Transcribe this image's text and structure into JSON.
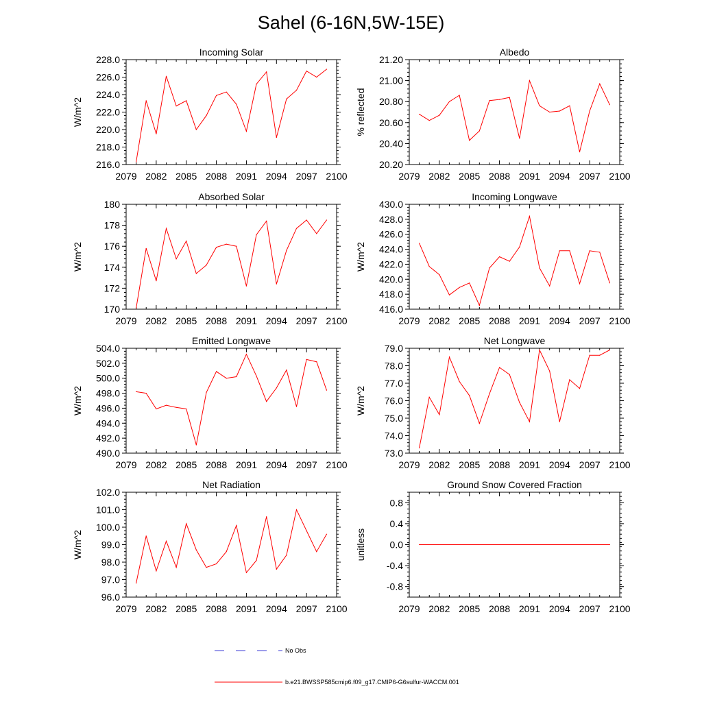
{
  "title": "Sahel (6-16N,5W-15E)",
  "colors": {
    "series": "#ff0000",
    "obs": "#3b3bd6",
    "axis": "#000000"
  },
  "legend": {
    "obs_label": "No Obs",
    "model_label": "b.e21.BWSSP585cmip6.f09_g17.CMIP6-G6sulfur-WACCM.001"
  },
  "chart_data": [
    {
      "type": "line",
      "title": "Incoming Solar",
      "ylabel": "W/m^2",
      "xlim": [
        2079,
        2100
      ],
      "xticks": [
        "2079",
        "2082",
        "2085",
        "2088",
        "2091",
        "2094",
        "2097",
        "2100"
      ],
      "ylim": [
        216.0,
        228.0
      ],
      "yticks": [
        "216.0",
        "218.0",
        "220.0",
        "222.0",
        "224.0",
        "226.0",
        "228.0"
      ],
      "series": [
        {
          "x": [
            2080,
            2081,
            2082,
            2083,
            2084,
            2085,
            2086,
            2087,
            2088,
            2089,
            2090,
            2091,
            2092,
            2093,
            2094,
            2095,
            2096,
            2097,
            2098,
            2099
          ],
          "values": [
            216.3,
            223.3,
            219.5,
            226.1,
            222.7,
            223.3,
            220.0,
            221.6,
            223.9,
            224.3,
            222.9,
            219.8,
            225.2,
            226.6,
            219.1,
            223.5,
            224.5,
            226.7,
            226.0,
            226.9
          ]
        }
      ]
    },
    {
      "type": "line",
      "title": "Albedo",
      "ylabel": "% reflected",
      "xlim": [
        2079,
        2100
      ],
      "xticks": [
        "2079",
        "2082",
        "2085",
        "2088",
        "2091",
        "2094",
        "2097",
        "2100"
      ],
      "ylim": [
        20.2,
        21.2
      ],
      "yticks": [
        "20.20",
        "20.40",
        "20.60",
        "20.80",
        "21.00",
        "21.20"
      ],
      "series": [
        {
          "x": [
            2080,
            2081,
            2082,
            2083,
            2084,
            2085,
            2086,
            2087,
            2088,
            2089,
            2090,
            2091,
            2092,
            2093,
            2094,
            2095,
            2096,
            2097,
            2098,
            2099
          ],
          "values": [
            20.68,
            20.62,
            20.67,
            20.8,
            20.86,
            20.43,
            20.52,
            20.81,
            20.82,
            20.84,
            20.45,
            21.0,
            20.76,
            20.7,
            20.71,
            20.76,
            20.32,
            20.71,
            20.97,
            20.77
          ]
        }
      ]
    },
    {
      "type": "line",
      "title": "Absorbed Solar",
      "ylabel": "W/m^2",
      "xlim": [
        2079,
        2100
      ],
      "xticks": [
        "2079",
        "2082",
        "2085",
        "2088",
        "2091",
        "2094",
        "2097",
        "2100"
      ],
      "ylim": [
        170,
        180
      ],
      "yticks": [
        "170",
        "172",
        "174",
        "176",
        "178",
        "180"
      ],
      "series": [
        {
          "x": [
            2080,
            2081,
            2082,
            2083,
            2084,
            2085,
            2086,
            2087,
            2088,
            2089,
            2090,
            2091,
            2092,
            2093,
            2094,
            2095,
            2096,
            2097,
            2098,
            2099
          ],
          "values": [
            170.1,
            175.8,
            172.7,
            177.7,
            174.8,
            176.5,
            173.4,
            174.2,
            175.9,
            176.2,
            176.0,
            172.2,
            177.1,
            178.4,
            172.4,
            175.6,
            177.7,
            178.5,
            177.2,
            178.5
          ]
        }
      ]
    },
    {
      "type": "line",
      "title": "Incoming Longwave",
      "ylabel": "W/m^2",
      "xlim": [
        2079,
        2100
      ],
      "xticks": [
        "2079",
        "2082",
        "2085",
        "2088",
        "2091",
        "2094",
        "2097",
        "2100"
      ],
      "ylim": [
        416.0,
        430.0
      ],
      "yticks": [
        "416.0",
        "418.0",
        "420.0",
        "422.0",
        "424.0",
        "426.0",
        "428.0",
        "430.0"
      ],
      "series": [
        {
          "x": [
            2080,
            2081,
            2082,
            2083,
            2084,
            2085,
            2086,
            2087,
            2088,
            2089,
            2090,
            2091,
            2092,
            2093,
            2094,
            2095,
            2096,
            2097,
            2098,
            2099
          ],
          "values": [
            424.8,
            421.7,
            420.6,
            417.9,
            418.9,
            419.5,
            416.5,
            421.5,
            423.0,
            422.4,
            424.3,
            428.4,
            421.5,
            419.1,
            423.8,
            423.8,
            419.4,
            423.8,
            423.6,
            419.5
          ]
        }
      ]
    },
    {
      "type": "line",
      "title": "Emitted Longwave",
      "ylabel": "W/m^2",
      "xlim": [
        2079,
        2100
      ],
      "xticks": [
        "2079",
        "2082",
        "2085",
        "2088",
        "2091",
        "2094",
        "2097",
        "2100"
      ],
      "ylim": [
        490.0,
        504.0
      ],
      "yticks": [
        "490.0",
        "492.0",
        "494.0",
        "496.0",
        "498.0",
        "500.0",
        "502.0",
        "504.0"
      ],
      "series": [
        {
          "x": [
            2080,
            2081,
            2082,
            2083,
            2084,
            2085,
            2086,
            2087,
            2088,
            2089,
            2090,
            2091,
            2092,
            2093,
            2094,
            2095,
            2096,
            2097,
            2098,
            2099
          ],
          "values": [
            498.2,
            498.0,
            495.9,
            496.4,
            496.1,
            495.9,
            491.1,
            498.1,
            500.9,
            500.0,
            500.2,
            503.2,
            500.3,
            496.9,
            498.7,
            501.1,
            496.2,
            502.5,
            502.2,
            498.4
          ]
        }
      ]
    },
    {
      "type": "line",
      "title": "Net Longwave",
      "ylabel": "W/m^2",
      "xlim": [
        2079,
        2100
      ],
      "xticks": [
        "2079",
        "2082",
        "2085",
        "2088",
        "2091",
        "2094",
        "2097",
        "2100"
      ],
      "ylim": [
        73.0,
        79.0
      ],
      "yticks": [
        "73.0",
        "74.0",
        "75.0",
        "76.0",
        "77.0",
        "78.0",
        "79.0"
      ],
      "series": [
        {
          "x": [
            2080,
            2081,
            2082,
            2083,
            2084,
            2085,
            2086,
            2087,
            2088,
            2089,
            2090,
            2091,
            2092,
            2093,
            2094,
            2095,
            2096,
            2097,
            2098,
            2099
          ],
          "values": [
            73.3,
            76.2,
            75.2,
            78.5,
            77.1,
            76.3,
            74.7,
            76.4,
            77.9,
            77.5,
            75.9,
            74.8,
            78.9,
            77.7,
            74.8,
            77.2,
            76.7,
            78.6,
            78.6,
            78.9
          ]
        }
      ]
    },
    {
      "type": "line",
      "title": "Net Radiation",
      "ylabel": "W/m^2",
      "xlim": [
        2079,
        2100
      ],
      "xticks": [
        "2079",
        "2082",
        "2085",
        "2088",
        "2091",
        "2094",
        "2097",
        "2100"
      ],
      "ylim": [
        96.0,
        102.0
      ],
      "yticks": [
        "96.0",
        "97.0",
        "98.0",
        "99.0",
        "100.0",
        "101.0",
        "102.0"
      ],
      "series": [
        {
          "x": [
            2080,
            2081,
            2082,
            2083,
            2084,
            2085,
            2086,
            2087,
            2088,
            2089,
            2090,
            2091,
            2092,
            2093,
            2094,
            2095,
            2096,
            2097,
            2098,
            2099
          ],
          "values": [
            96.8,
            99.5,
            97.5,
            99.2,
            97.7,
            100.2,
            98.7,
            97.7,
            97.9,
            98.6,
            100.1,
            97.4,
            98.1,
            100.6,
            97.6,
            98.4,
            101.0,
            99.8,
            98.6,
            99.6
          ]
        }
      ]
    },
    {
      "type": "line",
      "title": "Ground Snow Covered Fraction",
      "ylabel": "unitless",
      "xlim": [
        2079,
        2100
      ],
      "xticks": [
        "2079",
        "2082",
        "2085",
        "2088",
        "2091",
        "2094",
        "2097",
        "2100"
      ],
      "ylim": [
        -1.0,
        1.0
      ],
      "yticks": [
        "-0.8",
        "-0.4",
        "0.0",
        "0.4",
        "0.8"
      ],
      "series": [
        {
          "x": [
            2080,
            2081,
            2082,
            2083,
            2084,
            2085,
            2086,
            2087,
            2088,
            2089,
            2090,
            2091,
            2092,
            2093,
            2094,
            2095,
            2096,
            2097,
            2098,
            2099
          ],
          "values": [
            0,
            0,
            0,
            0,
            0,
            0,
            0,
            0,
            0,
            0,
            0,
            0,
            0,
            0,
            0,
            0,
            0,
            0,
            0,
            0
          ]
        }
      ]
    }
  ]
}
